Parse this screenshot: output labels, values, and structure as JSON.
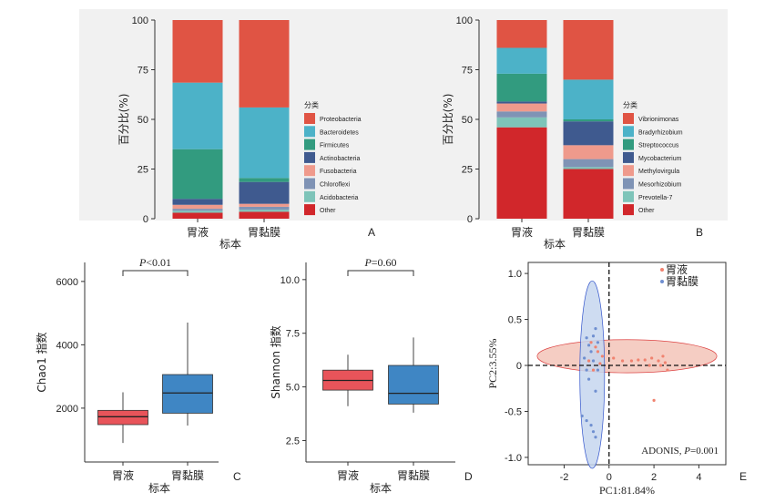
{
  "chart_data": [
    {
      "id": "A",
      "type": "bar",
      "stacked": true,
      "panel_label": "A",
      "xlabel": "标本",
      "ylabel": "百分比(%)",
      "ylim": [
        0,
        100
      ],
      "yticks": [
        "0",
        "25",
        "50",
        "75",
        "100"
      ],
      "categories": [
        "胃液",
        "胃黏膜"
      ],
      "legend_title": "分类",
      "background": "#f1f1f1",
      "series": [
        {
          "name": "Other",
          "color": "#d1272b",
          "values": [
            3,
            3.5
          ]
        },
        {
          "name": "Acidobacteria",
          "color": "#7ec4b9",
          "values": [
            1,
            1
          ]
        },
        {
          "name": "Chloroflexi",
          "color": "#7f93b5",
          "values": [
            1,
            1.5
          ]
        },
        {
          "name": "Fusobacteria",
          "color": "#ef9a8c",
          "values": [
            2,
            1.5
          ]
        },
        {
          "name": "Actinobacteria",
          "color": "#3f5a8f",
          "values": [
            3,
            11
          ]
        },
        {
          "name": "Firmicutes",
          "color": "#329b7f",
          "values": [
            25,
            2
          ]
        },
        {
          "name": "Bacteroidetes",
          "color": "#4cb2c8",
          "values": [
            33.5,
            35.5
          ]
        },
        {
          "name": "Proteobacteria",
          "color": "#e05444",
          "values": [
            31.5,
            44
          ]
        }
      ]
    },
    {
      "id": "B",
      "type": "bar",
      "stacked": true,
      "panel_label": "B",
      "xlabel": "标本",
      "ylabel": "百分比(%)",
      "ylim": [
        0,
        100
      ],
      "yticks": [
        "0",
        "25",
        "50",
        "75",
        "100"
      ],
      "categories": [
        "胃液",
        "胃黏膜"
      ],
      "legend_title": "分类",
      "background": "#f1f1f1",
      "series": [
        {
          "name": "Other",
          "color": "#d1272b",
          "values": [
            46,
            25
          ]
        },
        {
          "name": "Prevotella-7",
          "color": "#7ec4b9",
          "values": [
            5,
            1
          ]
        },
        {
          "name": "Mesorhizobium",
          "color": "#7f93b5",
          "values": [
            3,
            4
          ]
        },
        {
          "name": "Methylovirgula",
          "color": "#ef9a8c",
          "values": [
            4,
            7
          ]
        },
        {
          "name": "Mycobacterium",
          "color": "#3f5a8f",
          "values": [
            1,
            12
          ]
        },
        {
          "name": "Streptococcus",
          "color": "#329b7f",
          "values": [
            14,
            1
          ]
        },
        {
          "name": "Bradyrhizobium",
          "color": "#4cb2c8",
          "values": [
            13,
            20
          ]
        },
        {
          "name": "Vibrionimonas",
          "color": "#e05444",
          "values": [
            14,
            30
          ]
        }
      ]
    },
    {
      "id": "C",
      "type": "box",
      "panel_label": "C",
      "xlabel": "标本",
      "ylabel": "Chao1 指数",
      "ylim": [
        300,
        6600
      ],
      "yticks": [
        2000,
        4000,
        6000
      ],
      "ytick_labels": [
        "2000",
        "4000",
        "6000"
      ],
      "categories": [
        "胃液",
        "胃黏膜"
      ],
      "significance": "P<0.01",
      "boxes": [
        {
          "name": "胃液",
          "color": "#e8545a",
          "min": 900,
          "q1": 1480,
          "median": 1730,
          "q3": 1930,
          "max": 2500
        },
        {
          "name": "胃黏膜",
          "color": "#3f86c4",
          "min": 1450,
          "q1": 1840,
          "median": 2480,
          "q3": 3060,
          "max": 4700
        }
      ]
    },
    {
      "id": "D",
      "type": "box",
      "panel_label": "D",
      "xlabel": "标本",
      "ylabel": "Shannon 指数",
      "ylim": [
        1.5,
        10.8
      ],
      "yticks": [
        2.5,
        5.0,
        7.5,
        10.0
      ],
      "ytick_labels": [
        "2.5",
        "5.0",
        "7.5",
        "10.0"
      ],
      "categories": [
        "胃液",
        "胃黏膜"
      ],
      "significance": "P=0.60",
      "boxes": [
        {
          "name": "胃液",
          "color": "#e8545a",
          "min": 4.1,
          "q1": 4.85,
          "median": 5.3,
          "q3": 5.78,
          "max": 6.5
        },
        {
          "name": "胃黏膜",
          "color": "#3f86c4",
          "min": 3.8,
          "q1": 4.2,
          "median": 4.7,
          "q3": 6.0,
          "max": 7.3
        }
      ]
    },
    {
      "id": "E",
      "type": "scatter",
      "panel_label": "E",
      "xlabel": "PC1:81.84%",
      "ylabel": "PC2:3.55%",
      "xlim": [
        -3.6,
        5.2
      ],
      "ylim": [
        -1.08,
        1.12
      ],
      "xticks": [
        -2,
        0,
        2,
        4
      ],
      "xtick_labels": [
        "-2",
        "0",
        "2",
        "4"
      ],
      "yticks": [
        -1.0,
        -0.5,
        0,
        0.5,
        1.0
      ],
      "ytick_labels": [
        "-1.0",
        "-0.5",
        "0",
        "0.5",
        "1.0"
      ],
      "annotation_prefix": "ADONIS, ",
      "annotation_p": "P=0.001",
      "series": [
        {
          "name": "胃液",
          "color": "#f0826f",
          "ellipse": {
            "cx": 0.8,
            "cy": 0.1,
            "rx": 4.0,
            "ry": 0.18,
            "fill": "#f3c4b8",
            "stroke": "#d44"
          },
          "points": [
            [
              -0.8,
              0.25
            ],
            [
              -0.6,
              0.2
            ],
            [
              -0.5,
              0.15
            ],
            [
              -0.3,
              0.1
            ],
            [
              -0.9,
              0.05
            ],
            [
              -0.7,
              -0.05
            ],
            [
              -0.4,
              0.02
            ],
            [
              0.2,
              0.08
            ],
            [
              0.6,
              0.05
            ],
            [
              1.0,
              0.05
            ],
            [
              1.3,
              0.06
            ],
            [
              1.6,
              0.06
            ],
            [
              1.9,
              0.08
            ],
            [
              2.2,
              0.05
            ],
            [
              2.4,
              0.1
            ],
            [
              2.5,
              0.03
            ],
            [
              2.6,
              -0.05
            ],
            [
              2.0,
              -0.38
            ],
            [
              1.8,
              0.0
            ],
            [
              2.3,
              0.0
            ]
          ]
        },
        {
          "name": "胃黏膜",
          "color": "#6f8fd0",
          "ellipse": {
            "cx": -0.75,
            "cy": -0.1,
            "rx": 0.55,
            "ry": 1.02,
            "fill": "#c5d6ee",
            "stroke": "#35c"
          },
          "points": [
            [
              -0.6,
              0.4
            ],
            [
              -0.7,
              0.32
            ],
            [
              -1.0,
              0.3
            ],
            [
              -0.9,
              0.22
            ],
            [
              -0.5,
              0.25
            ],
            [
              -0.8,
              0.15
            ],
            [
              -1.1,
              0.08
            ],
            [
              -0.7,
              0.05
            ],
            [
              -0.5,
              -0.05
            ],
            [
              -1.0,
              -0.05
            ],
            [
              -0.9,
              -0.15
            ],
            [
              -0.6,
              -0.28
            ],
            [
              -1.2,
              -0.55
            ],
            [
              -1.0,
              -0.6
            ],
            [
              -0.8,
              -0.65
            ],
            [
              -0.7,
              -0.72
            ],
            [
              -0.6,
              -0.78
            ]
          ]
        }
      ]
    }
  ]
}
